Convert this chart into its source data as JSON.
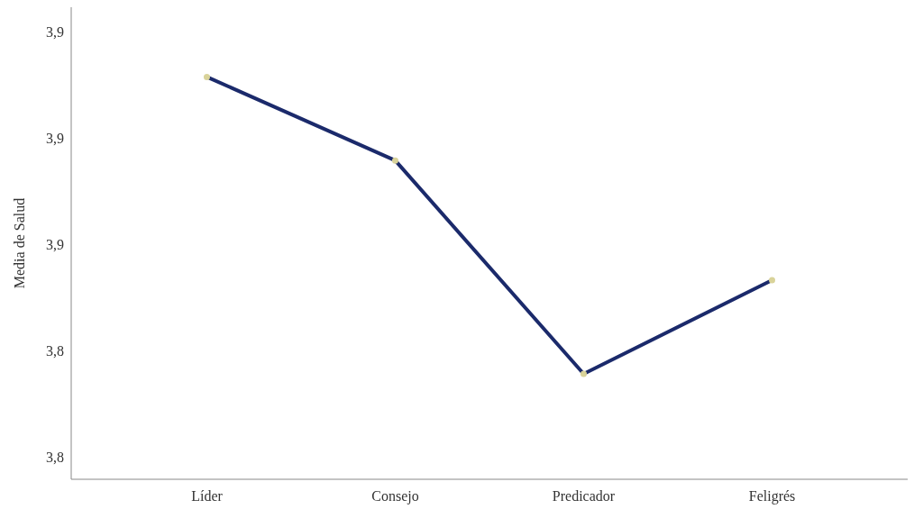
{
  "chart_data": {
    "type": "line",
    "ylabel": "Media de Salud",
    "categories": [
      "Líder",
      "Consejo",
      "Predicador",
      "Feligrés"
    ],
    "series": [
      {
        "color": "#1b2a6b",
        "values": [
          3.8915,
          3.8758,
          3.8357,
          3.8533
        ]
      }
    ],
    "ylim": [
      3.8159,
      3.9046
    ],
    "yticks": [
      {
        "value": 3.82,
        "label": "3,8"
      },
      {
        "value": 3.84,
        "label": "3,8"
      },
      {
        "value": 3.86,
        "label": "3,9"
      },
      {
        "value": 3.88,
        "label": "3,9"
      },
      {
        "value": 3.9,
        "label": "3,9"
      }
    ],
    "marker": "circle",
    "line_style": "solid"
  }
}
